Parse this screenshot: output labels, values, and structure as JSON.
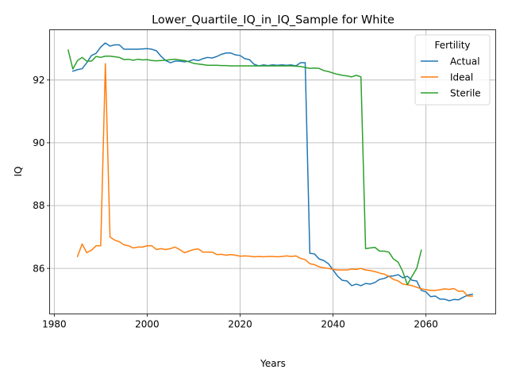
{
  "chart_data": {
    "type": "line",
    "title": "Lower_Quartile_IQ_in_IQ_Sample for White",
    "xlabel": "Years",
    "ylabel": "IQ",
    "xlim": [
      1979,
      2075
    ],
    "ylim": [
      84.55,
      93.6
    ],
    "xticks": [
      1980,
      2000,
      2020,
      2040,
      2060
    ],
    "yticks": [
      86,
      88,
      90,
      92
    ],
    "grid": true,
    "legend": {
      "title": "Fertility",
      "placement": "top-right"
    },
    "series": [
      {
        "name": "Actual",
        "color": "#1f77b4",
        "x": [
          1984,
          1985,
          1986,
          1987,
          1988,
          1989,
          1990,
          1991,
          1992,
          1993,
          1994,
          1995,
          1996,
          1997,
          1998,
          1999,
          2000,
          2001,
          2002,
          2003,
          2004,
          2005,
          2006,
          2007,
          2008,
          2009,
          2010,
          2011,
          2012,
          2013,
          2014,
          2015,
          2016,
          2017,
          2018,
          2019,
          2020,
          2021,
          2022,
          2023,
          2024,
          2025,
          2026,
          2027,
          2028,
          2029,
          2030,
          2031,
          2032,
          2033,
          2034,
          2035,
          2036,
          2037,
          2038,
          2039,
          2040,
          2041,
          2042,
          2043,
          2044,
          2045,
          2046,
          2047,
          2048,
          2049,
          2050,
          2051,
          2052,
          2053,
          2054,
          2055,
          2056,
          2057,
          2058,
          2059,
          2060,
          2061,
          2062,
          2063,
          2064,
          2065,
          2066,
          2067,
          2068,
          2069,
          2070
        ],
        "values": [
          92.28,
          92.33,
          92.36,
          92.55,
          92.78,
          92.85,
          93.05,
          93.18,
          93.08,
          93.12,
          93.12,
          92.98,
          92.98,
          92.98,
          92.98,
          92.99,
          93.0,
          92.98,
          92.93,
          92.75,
          92.62,
          92.55,
          92.6,
          92.6,
          92.58,
          92.6,
          92.65,
          92.62,
          92.68,
          92.72,
          92.7,
          92.75,
          92.82,
          92.86,
          92.86,
          92.8,
          92.78,
          92.68,
          92.65,
          92.5,
          92.45,
          92.48,
          92.46,
          92.48,
          92.47,
          92.48,
          92.47,
          92.48,
          92.45,
          92.55,
          92.55,
          86.48,
          86.46,
          86.3,
          86.25,
          86.15,
          85.95,
          85.75,
          85.62,
          85.6,
          85.45,
          85.5,
          85.45,
          85.52,
          85.5,
          85.55,
          85.65,
          85.68,
          85.75,
          85.76,
          85.8,
          85.7,
          85.75,
          85.62,
          85.6,
          85.3,
          85.25,
          85.1,
          85.12,
          85.02,
          85.02,
          84.97,
          85.01,
          85.0,
          85.08,
          85.15,
          85.18
        ]
      },
      {
        "name": "Ideal",
        "color": "#ff7f0e",
        "x": [
          1985,
          1986,
          1987,
          1988,
          1989,
          1990,
          1991,
          1992,
          1993,
          1994,
          1995,
          1996,
          1997,
          1998,
          1999,
          2000,
          2001,
          2002,
          2003,
          2004,
          2005,
          2006,
          2007,
          2008,
          2009,
          2010,
          2011,
          2012,
          2013,
          2014,
          2015,
          2016,
          2017,
          2018,
          2019,
          2020,
          2021,
          2022,
          2023,
          2024,
          2025,
          2026,
          2027,
          2028,
          2029,
          2030,
          2031,
          2032,
          2033,
          2034,
          2035,
          2036,
          2037,
          2038,
          2039,
          2040,
          2041,
          2042,
          2043,
          2044,
          2045,
          2046,
          2047,
          2048,
          2049,
          2050,
          2051,
          2052,
          2053,
          2054,
          2055,
          2056,
          2057,
          2058,
          2059,
          2060,
          2061,
          2062,
          2063,
          2064,
          2065,
          2066,
          2067,
          2068,
          2069,
          2070
        ],
        "values": [
          86.38,
          86.78,
          86.5,
          86.58,
          86.72,
          86.72,
          92.52,
          87.0,
          86.9,
          86.85,
          86.75,
          86.72,
          86.65,
          86.68,
          86.68,
          86.72,
          86.72,
          86.6,
          86.63,
          86.6,
          86.63,
          86.68,
          86.6,
          86.5,
          86.55,
          86.6,
          86.62,
          86.52,
          86.52,
          86.52,
          86.44,
          86.45,
          86.42,
          86.44,
          86.42,
          86.39,
          86.4,
          86.39,
          86.37,
          86.38,
          86.37,
          86.38,
          86.38,
          86.37,
          86.38,
          86.4,
          86.38,
          86.4,
          86.32,
          86.28,
          86.15,
          86.12,
          86.05,
          86.02,
          86.0,
          85.97,
          85.95,
          85.95,
          85.95,
          85.98,
          85.97,
          86.0,
          85.95,
          85.93,
          85.9,
          85.85,
          85.82,
          85.75,
          85.65,
          85.6,
          85.5,
          85.48,
          85.45,
          85.4,
          85.35,
          85.32,
          85.3,
          85.3,
          85.32,
          85.35,
          85.33,
          85.36,
          85.27,
          85.28,
          85.12,
          85.12
        ]
      },
      {
        "name": "Sterile",
        "color": "#2ca02c",
        "x": [
          1983,
          1984,
          1985,
          1986,
          1987,
          1988,
          1989,
          1990,
          1991,
          1992,
          1993,
          1994,
          1995,
          1996,
          1997,
          1998,
          1999,
          2000,
          2001,
          2002,
          2003,
          2004,
          2005,
          2006,
          2007,
          2008,
          2009,
          2010,
          2011,
          2012,
          2013,
          2014,
          2015,
          2016,
          2017,
          2018,
          2019,
          2020,
          2021,
          2022,
          2023,
          2024,
          2025,
          2026,
          2027,
          2028,
          2029,
          2030,
          2031,
          2032,
          2033,
          2034,
          2035,
          2036,
          2037,
          2038,
          2039,
          2040,
          2041,
          2042,
          2043,
          2044,
          2045,
          2046,
          2047,
          2048,
          2049,
          2050,
          2051,
          2052,
          2053,
          2054,
          2055,
          2056,
          2057,
          2058,
          2059
        ],
        "values": [
          92.95,
          92.35,
          92.62,
          92.72,
          92.6,
          92.6,
          92.75,
          92.72,
          92.76,
          92.76,
          92.74,
          92.72,
          92.65,
          92.66,
          92.63,
          92.66,
          92.64,
          92.65,
          92.62,
          92.61,
          92.62,
          92.63,
          92.65,
          92.66,
          92.64,
          92.62,
          92.58,
          92.53,
          92.51,
          92.49,
          92.47,
          92.47,
          92.47,
          92.46,
          92.46,
          92.45,
          92.45,
          92.45,
          92.45,
          92.45,
          92.45,
          92.45,
          92.45,
          92.45,
          92.45,
          92.45,
          92.45,
          92.45,
          92.45,
          92.44,
          92.43,
          92.4,
          92.37,
          92.38,
          92.37,
          92.3,
          92.27,
          92.22,
          92.18,
          92.15,
          92.13,
          92.1,
          92.15,
          92.1,
          86.63,
          86.65,
          86.67,
          86.55,
          86.55,
          86.52,
          86.3,
          86.2,
          85.9,
          85.48,
          85.75,
          86.0,
          86.58
        ]
      }
    ]
  }
}
